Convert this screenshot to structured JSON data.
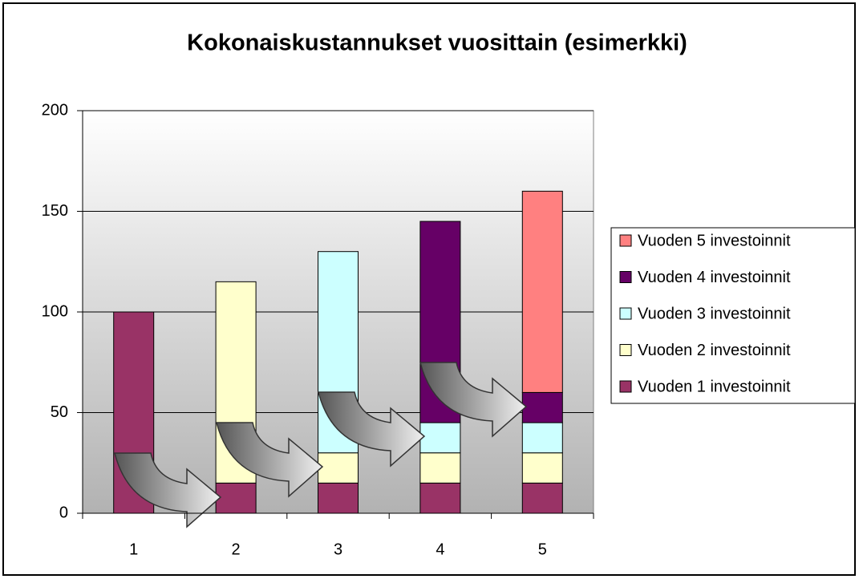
{
  "chart_data": {
    "type": "stacked_bar",
    "title": "Kokonaiskustannukset vuosittain (esimerkki)",
    "categories": [
      "1",
      "2",
      "3",
      "4",
      "5"
    ],
    "series": [
      {
        "name": "Vuoden 1 investoinnit",
        "color": "#993366",
        "values": [
          100,
          15,
          15,
          15,
          15
        ]
      },
      {
        "name": "Vuoden 2 investoinnit",
        "color": "#FFFFCC",
        "values": [
          null,
          100,
          15,
          15,
          15
        ]
      },
      {
        "name": "Vuoden 3 investoinnit",
        "color": "#CCFFFF",
        "values": [
          null,
          null,
          100,
          15,
          15
        ]
      },
      {
        "name": "Vuoden 4 investoinnit",
        "color": "#660066",
        "values": [
          null,
          null,
          null,
          100,
          15
        ]
      },
      {
        "name": "Vuoden 5 investoinnit",
        "color": "#FF8080",
        "values": [
          null,
          null,
          null,
          null,
          100
        ]
      }
    ],
    "ylim": [
      0,
      200
    ],
    "yticks": [
      0,
      50,
      100,
      150,
      200
    ],
    "grid": true,
    "legend": "right"
  }
}
